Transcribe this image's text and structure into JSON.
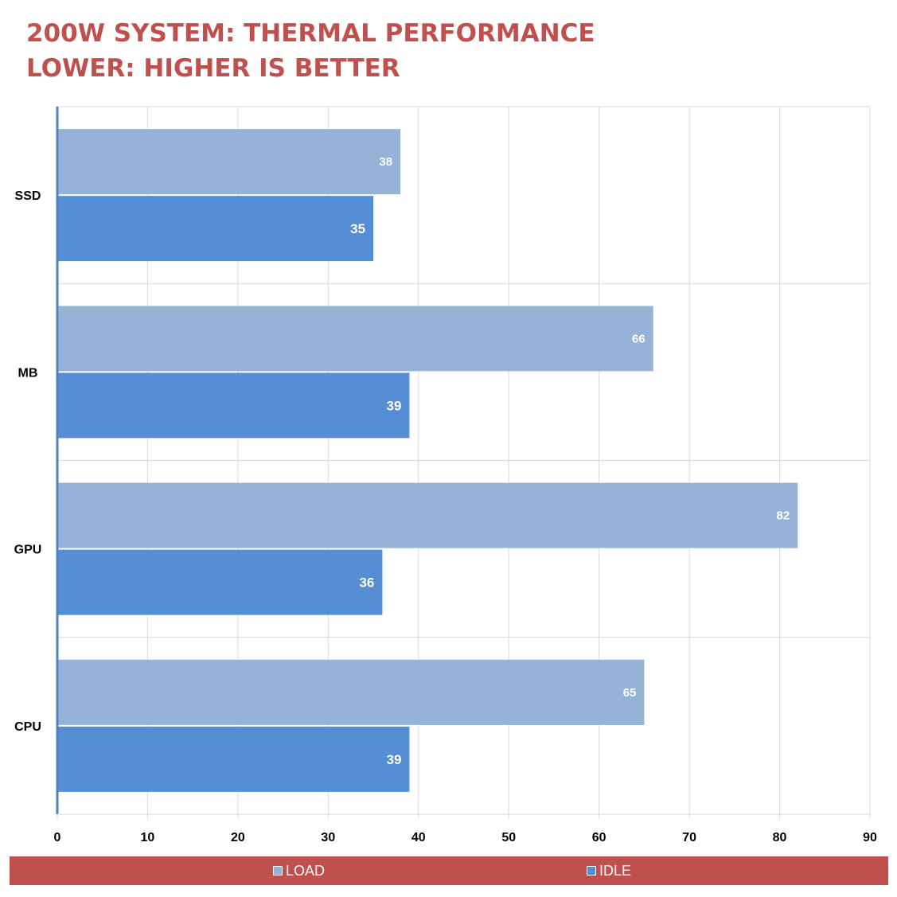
{
  "title": {
    "line1": "200W SYSTEM: THERMAL PERFORMANCE",
    "line2": "LOWER: HIGHER IS BETTER"
  },
  "colors": {
    "title": "#c0504d",
    "load": "#95b3d7",
    "idle": "#558ed5",
    "grid": "#d9d9d9",
    "axis": "#4f81bd",
    "legend_background": "#c0504d"
  },
  "legend": {
    "load_label": "LOAD",
    "idle_label": "IDLE"
  },
  "chart_data": {
    "type": "bar",
    "orientation": "horizontal",
    "categories": [
      "SSD",
      "MB",
      "GPU",
      "CPU"
    ],
    "series": [
      {
        "name": "LOAD",
        "values": [
          38,
          66,
          82,
          65
        ]
      },
      {
        "name": "IDLE",
        "values": [
          35,
          39,
          36,
          39
        ]
      }
    ],
    "xlim": [
      0,
      90
    ],
    "xticks": [
      0,
      10,
      20,
      30,
      40,
      50,
      60,
      70,
      80,
      90
    ],
    "grid": true,
    "data_labels": true,
    "legend_position": "bottom"
  }
}
